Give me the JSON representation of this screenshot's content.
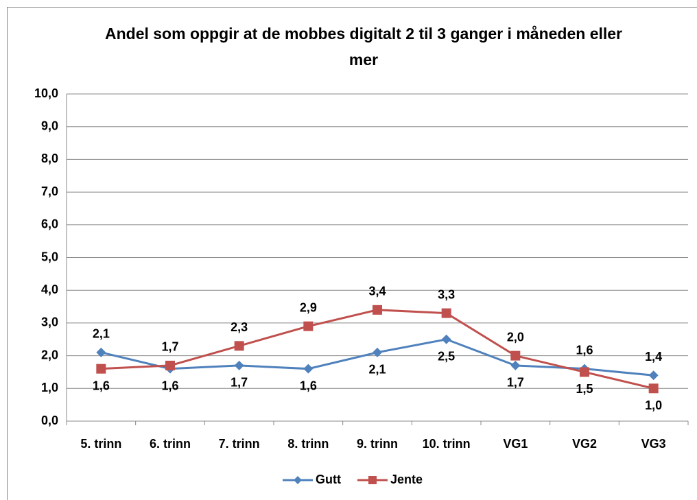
{
  "chart_data": {
    "type": "line",
    "title": "Andel som oppgir at de mobbes digitalt  2 til 3 ganger i måneden eller mer",
    "categories": [
      "5. trinn",
      "6. trinn",
      "7. trinn",
      "8. trinn",
      "9. trinn",
      "10. trinn",
      "VG1",
      "VG2",
      "VG3"
    ],
    "series": [
      {
        "name": "Gutt",
        "color": "#4f81bd",
        "marker": "diamond",
        "values": [
          2.1,
          1.6,
          1.7,
          1.6,
          2.1,
          2.5,
          1.7,
          1.6,
          1.4
        ],
        "value_labels": [
          "2,1",
          "1,6",
          "1,7",
          "1,6",
          "2,1",
          "2,5",
          "1,7",
          "1,6",
          "1,4"
        ]
      },
      {
        "name": "Jente",
        "color": "#c0504d",
        "marker": "square",
        "values": [
          1.6,
          1.7,
          2.3,
          2.9,
          3.4,
          3.3,
          2.0,
          1.5,
          1.0
        ],
        "value_labels": [
          "1,6",
          "1,7",
          "2,3",
          "2,9",
          "3,4",
          "3,3",
          "2,0",
          "1,5",
          "1,0"
        ]
      }
    ],
    "ylim": [
      0,
      10
    ],
    "yticks": [
      {
        "value": 0,
        "label": "0,0"
      },
      {
        "value": 1,
        "label": "1,0"
      },
      {
        "value": 2,
        "label": "2,0"
      },
      {
        "value": 3,
        "label": "3,0"
      },
      {
        "value": 4,
        "label": "4,0"
      },
      {
        "value": 5,
        "label": "5,0"
      },
      {
        "value": 6,
        "label": "6,0"
      },
      {
        "value": 7,
        "label": "7,0"
      },
      {
        "value": 8,
        "label": "8,0"
      },
      {
        "value": 9,
        "label": "9,0"
      },
      {
        "value": 10,
        "label": "10,0"
      }
    ],
    "grid": true,
    "legend": "bottom"
  }
}
